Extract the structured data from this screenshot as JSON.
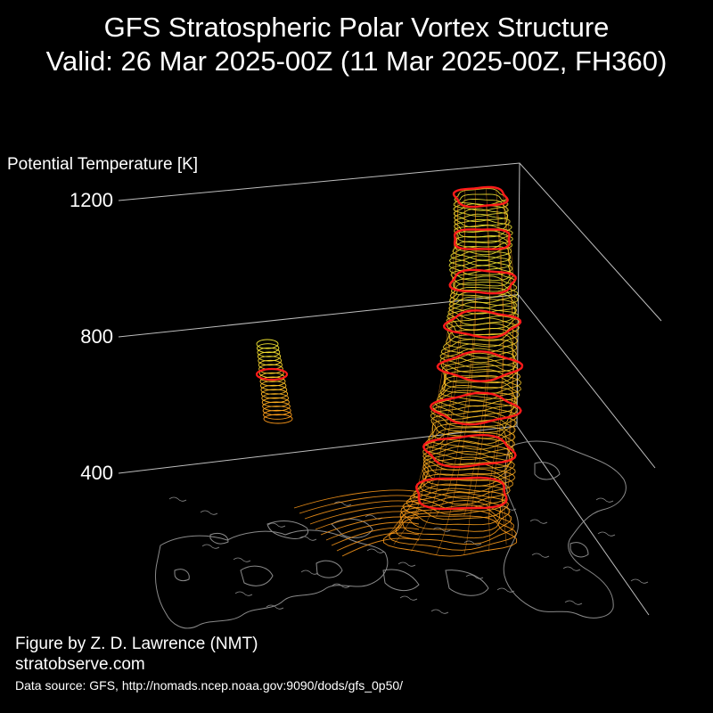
{
  "header": {
    "title_line1": "GFS Stratospheric Polar Vortex Structure",
    "title_line2": "Valid: 26 Mar 2025-00Z  (11 Mar 2025-00Z, FH360)"
  },
  "footer": {
    "credit": "Figure by Z. D. Lawrence (NMT)",
    "website": "stratobserve.com",
    "source": "Data source: GFS, http://nomads.ncep.noaa.gov:9090/dods/gfs_0p50/"
  },
  "colors": {
    "background": "#000000",
    "text": "#ffffff",
    "grid": "#bdbdbd",
    "coastline": "#8a8a8a",
    "vortex_low": "#ff9a1a",
    "vortex_high": "#f2e632",
    "highlight_contour": "#ff1a1a"
  },
  "chart_data": {
    "type": "3d-isosurface",
    "title": "GFS Stratospheric Polar Vortex Structure",
    "subtitle": "Valid: 26 Mar 2025-00Z  (11 Mar 2025-00Z, FH360)",
    "zlabel": "Potential Temperature [K]",
    "z_ticks": [
      400,
      800,
      1200
    ],
    "zlim": [
      400,
      1200
    ],
    "grid": true,
    "features": [
      {
        "name": "main-vortex",
        "theta_range": [
          400,
          1200
        ]
      },
      {
        "name": "secondary-vortex",
        "theta_range": [
          700,
          850
        ]
      }
    ]
  }
}
